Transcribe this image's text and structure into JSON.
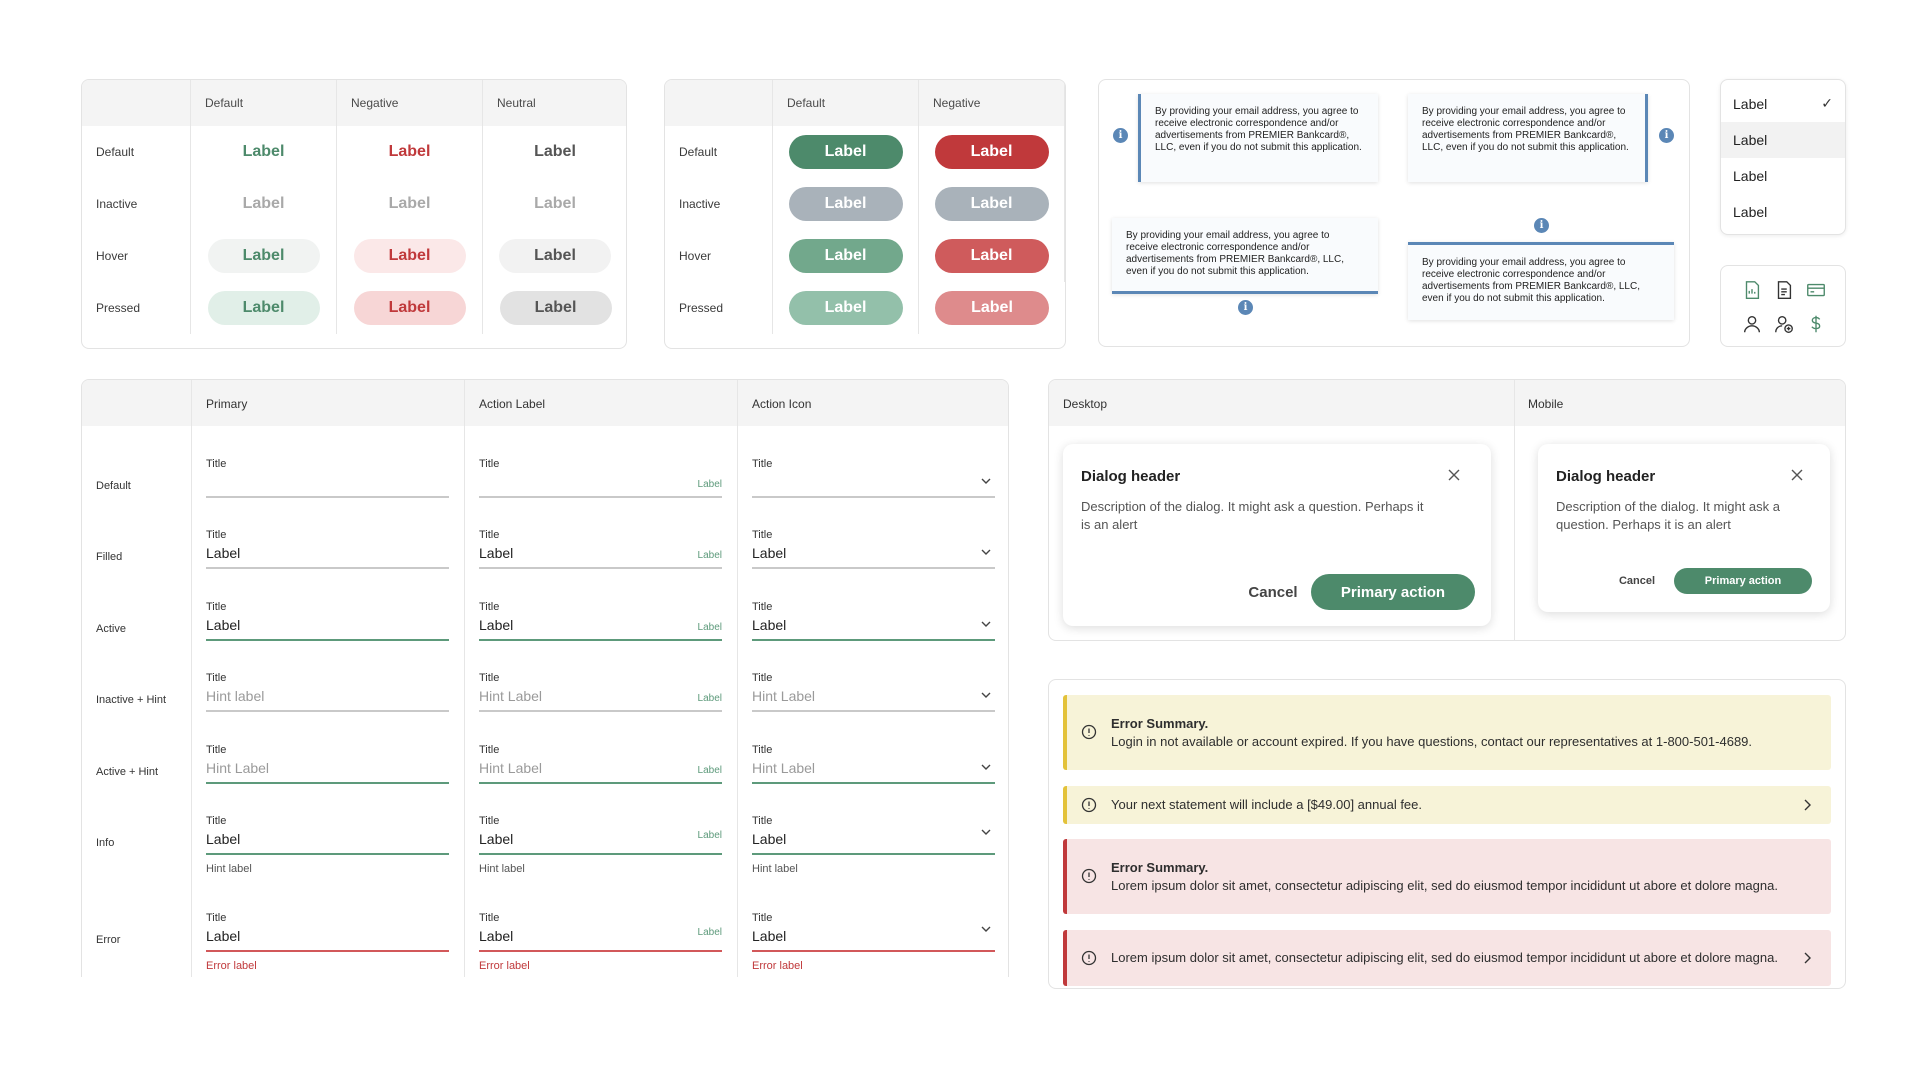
{
  "text_buttons": {
    "columns": [
      "Default",
      "Negative",
      "Neutral"
    ],
    "rows": [
      "Default",
      "Inactive",
      "Hover",
      "Pressed"
    ],
    "label": "Label"
  },
  "filled_buttons": {
    "columns": [
      "Default",
      "Negative"
    ],
    "rows": [
      "Default",
      "Inactive",
      "Hover",
      "Pressed"
    ],
    "label": "Label"
  },
  "tooltips": {
    "text_a": "By providing your email address, you agree to receive electronic correspondence and/or advertisements from PREMIER Bankcard®, LLC, even if you do not submit this application.",
    "text_b": "By providing your email address, you agree to receive electronic correspondence and/or advertisements from PREMIER Bankcard®, LLC, even if you do not submit this application.",
    "info_glyph": "i"
  },
  "dropdown": {
    "items": [
      "Label",
      "Label",
      "Label",
      "Label"
    ],
    "check": "✓"
  },
  "icons": [
    "document-chart-icon",
    "document-text-icon",
    "card-icon",
    "user-icon",
    "user-add-icon",
    "dollar-icon"
  ],
  "inputs": {
    "columns": [
      "Primary",
      "Action Label",
      "Action Icon"
    ],
    "rows": [
      "Default",
      "Filled",
      "Active",
      "Inactive + Hint",
      "Active + Hint",
      "Info",
      "Error"
    ],
    "title": "Title",
    "label": "Label",
    "action_label": "Label",
    "hint_primary": "Hint label",
    "hint_other": "Hint Label",
    "info_hint": "Hint label",
    "error_label": "Error label"
  },
  "dialogs": {
    "columns": [
      "Desktop",
      "Mobile"
    ],
    "header": "Dialog header",
    "description": "Description of the dialog. It might ask a question. Perhaps it is an alert",
    "cancel": "Cancel",
    "primary": "Primary action"
  },
  "alerts": {
    "a1_title": "Error Summary.",
    "a1_text": "Login in not available or account expired. If you have questions, contact our representatives at 1-800-501-4689.",
    "a2_text": "Your next statement will include a [$49.00] annual fee.",
    "a3_title": "Error Summary.",
    "a3_text": "Lorem ipsum dolor sit amet, consectetur adipiscing elit, sed do eiusmod tempor incididunt ut abore et dolore magna.",
    "a4_text": "Lorem ipsum dolor sit amet, consectetur adipiscing elit, sed do eiusmod tempor incididunt ut abore et dolore magna."
  },
  "colors": {
    "primary_green": "#4d8a6b",
    "negative_red": "#c0393b",
    "info_blue": "#5b87b6",
    "warning_yellow": "#e3c23a"
  }
}
